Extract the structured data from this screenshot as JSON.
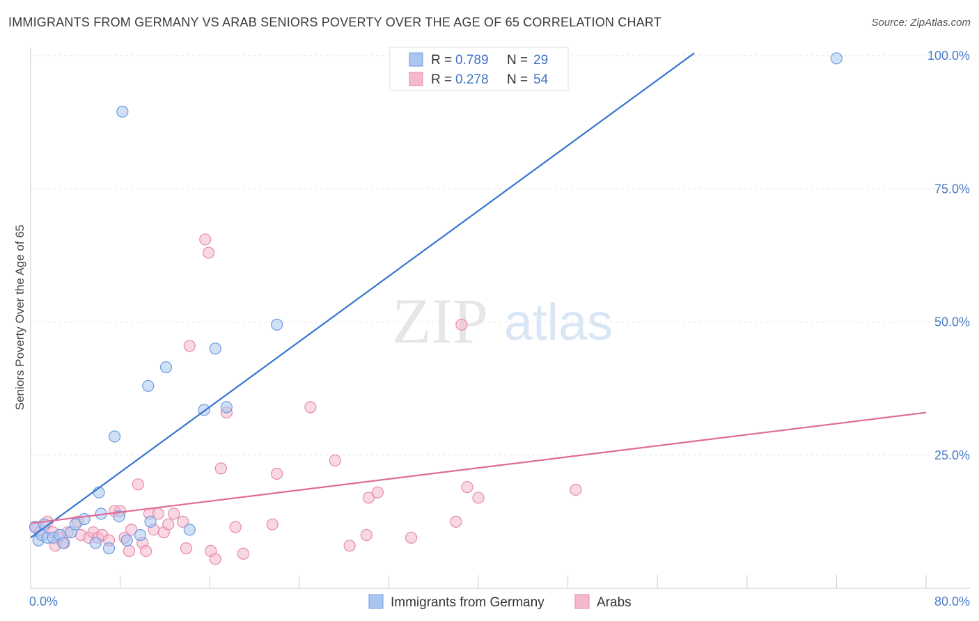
{
  "header": {
    "title": "IMMIGRANTS FROM GERMANY VS ARAB SENIORS POVERTY OVER THE AGE OF 65 CORRELATION CHART",
    "source": "Source: ZipAtlas.com"
  },
  "watermark": {
    "zip": "ZIP",
    "atlas": "atlas"
  },
  "legend": {
    "rows": [
      {
        "r_label": "R =",
        "r_value": "0.789",
        "n_label": "N =",
        "n_value": "29",
        "color": "#a9c6f0",
        "stroke": "#6e9be0"
      },
      {
        "r_label": "R =",
        "r_value": "0.278",
        "n_label": "N =",
        "n_value": "54",
        "color": "#f5b8cc",
        "stroke": "#e58aa8"
      }
    ]
  },
  "bottom_legend": [
    "Immigrants from Germany",
    "Arabs"
  ],
  "chart_data": {
    "type": "scatter",
    "title": "IMMIGRANTS FROM GERMANY VS ARAB SENIORS POVERTY OVER THE AGE OF 65 CORRELATION CHART",
    "xlabel": "",
    "ylabel": "Seniors Poverty Over the Age of 65",
    "xlim": [
      0,
      80
    ],
    "ylim": [
      0,
      102
    ],
    "x_tick_labels": [
      "0.0%",
      "80.0%"
    ],
    "y_ticks": [
      25,
      50,
      75,
      100
    ],
    "y_tick_labels": [
      "25.0%",
      "50.0%",
      "75.0%",
      "100.0%"
    ],
    "series": [
      {
        "name": "Immigrants from Germany",
        "color": "#a9c6f0",
        "stroke": "#6e9be0",
        "line_color": "#3775d0",
        "trend": {
          "x0": 0,
          "y0": 9.5,
          "x1": 59.3,
          "y1": 100.5
        },
        "points": [
          [
            0.4,
            11.5
          ],
          [
            0.7,
            9.0
          ],
          [
            1.0,
            10.0
          ],
          [
            1.2,
            12.0
          ],
          [
            1.5,
            9.5
          ],
          [
            2.0,
            9.5
          ],
          [
            2.6,
            10.0
          ],
          [
            2.9,
            8.5
          ],
          [
            3.6,
            10.5
          ],
          [
            4.0,
            12.0
          ],
          [
            4.8,
            13.0
          ],
          [
            5.8,
            8.5
          ],
          [
            6.1,
            18.0
          ],
          [
            6.3,
            14.0
          ],
          [
            7.0,
            7.5
          ],
          [
            7.5,
            28.5
          ],
          [
            8.2,
            89.5
          ],
          [
            7.9,
            13.5
          ],
          [
            8.6,
            9.0
          ],
          [
            9.8,
            10.0
          ],
          [
            10.5,
            38.0
          ],
          [
            10.7,
            12.5
          ],
          [
            12.1,
            41.5
          ],
          [
            14.2,
            11.0
          ],
          [
            15.5,
            33.5
          ],
          [
            16.5,
            45.0
          ],
          [
            17.5,
            34.0
          ],
          [
            22.0,
            49.5
          ],
          [
            72.0,
            99.5
          ]
        ]
      },
      {
        "name": "Arabs",
        "color": "#f5b8cc",
        "stroke": "#e58aa8",
        "line_color": "#e06a97",
        "trend": {
          "x0": 0,
          "y0": 12.2,
          "x1": 80,
          "y1": 33.0
        },
        "points": [
          [
            0.5,
            11.5
          ],
          [
            0.8,
            10.5
          ],
          [
            1.5,
            12.5
          ],
          [
            2.0,
            10.5
          ],
          [
            2.5,
            9.5
          ],
          [
            3.0,
            8.5
          ],
          [
            3.3,
            10.5
          ],
          [
            4.2,
            12.5
          ],
          [
            4.5,
            10.0
          ],
          [
            5.2,
            9.5
          ],
          [
            5.6,
            10.5
          ],
          [
            6.0,
            9.5
          ],
          [
            6.4,
            10.0
          ],
          [
            7.0,
            9.0
          ],
          [
            7.5,
            14.5
          ],
          [
            8.0,
            14.5
          ],
          [
            8.4,
            9.5
          ],
          [
            8.8,
            7.0
          ],
          [
            9.0,
            11.0
          ],
          [
            9.6,
            19.5
          ],
          [
            10.0,
            8.5
          ],
          [
            10.3,
            7.0
          ],
          [
            10.6,
            14.0
          ],
          [
            11.0,
            11.0
          ],
          [
            11.4,
            14.0
          ],
          [
            11.9,
            10.5
          ],
          [
            12.3,
            12.0
          ],
          [
            12.8,
            14.0
          ],
          [
            13.6,
            12.5
          ],
          [
            13.9,
            7.5
          ],
          [
            14.2,
            45.5
          ],
          [
            15.6,
            65.5
          ],
          [
            15.9,
            63.0
          ],
          [
            16.1,
            7.0
          ],
          [
            16.5,
            5.5
          ],
          [
            17.0,
            22.5
          ],
          [
            17.5,
            33.0
          ],
          [
            18.3,
            11.5
          ],
          [
            19.0,
            6.5
          ],
          [
            21.6,
            12.0
          ],
          [
            22.0,
            21.5
          ],
          [
            25.0,
            34.0
          ],
          [
            27.2,
            24.0
          ],
          [
            28.5,
            8.0
          ],
          [
            30.2,
            17.0
          ],
          [
            31.0,
            18.0
          ],
          [
            38.0,
            12.5
          ],
          [
            39.0,
            19.0
          ],
          [
            40.0,
            17.0
          ],
          [
            48.7,
            18.5
          ],
          [
            30.0,
            10.0
          ],
          [
            34.0,
            9.5
          ],
          [
            2.2,
            8.0
          ],
          [
            38.5,
            49.5
          ]
        ]
      }
    ]
  }
}
